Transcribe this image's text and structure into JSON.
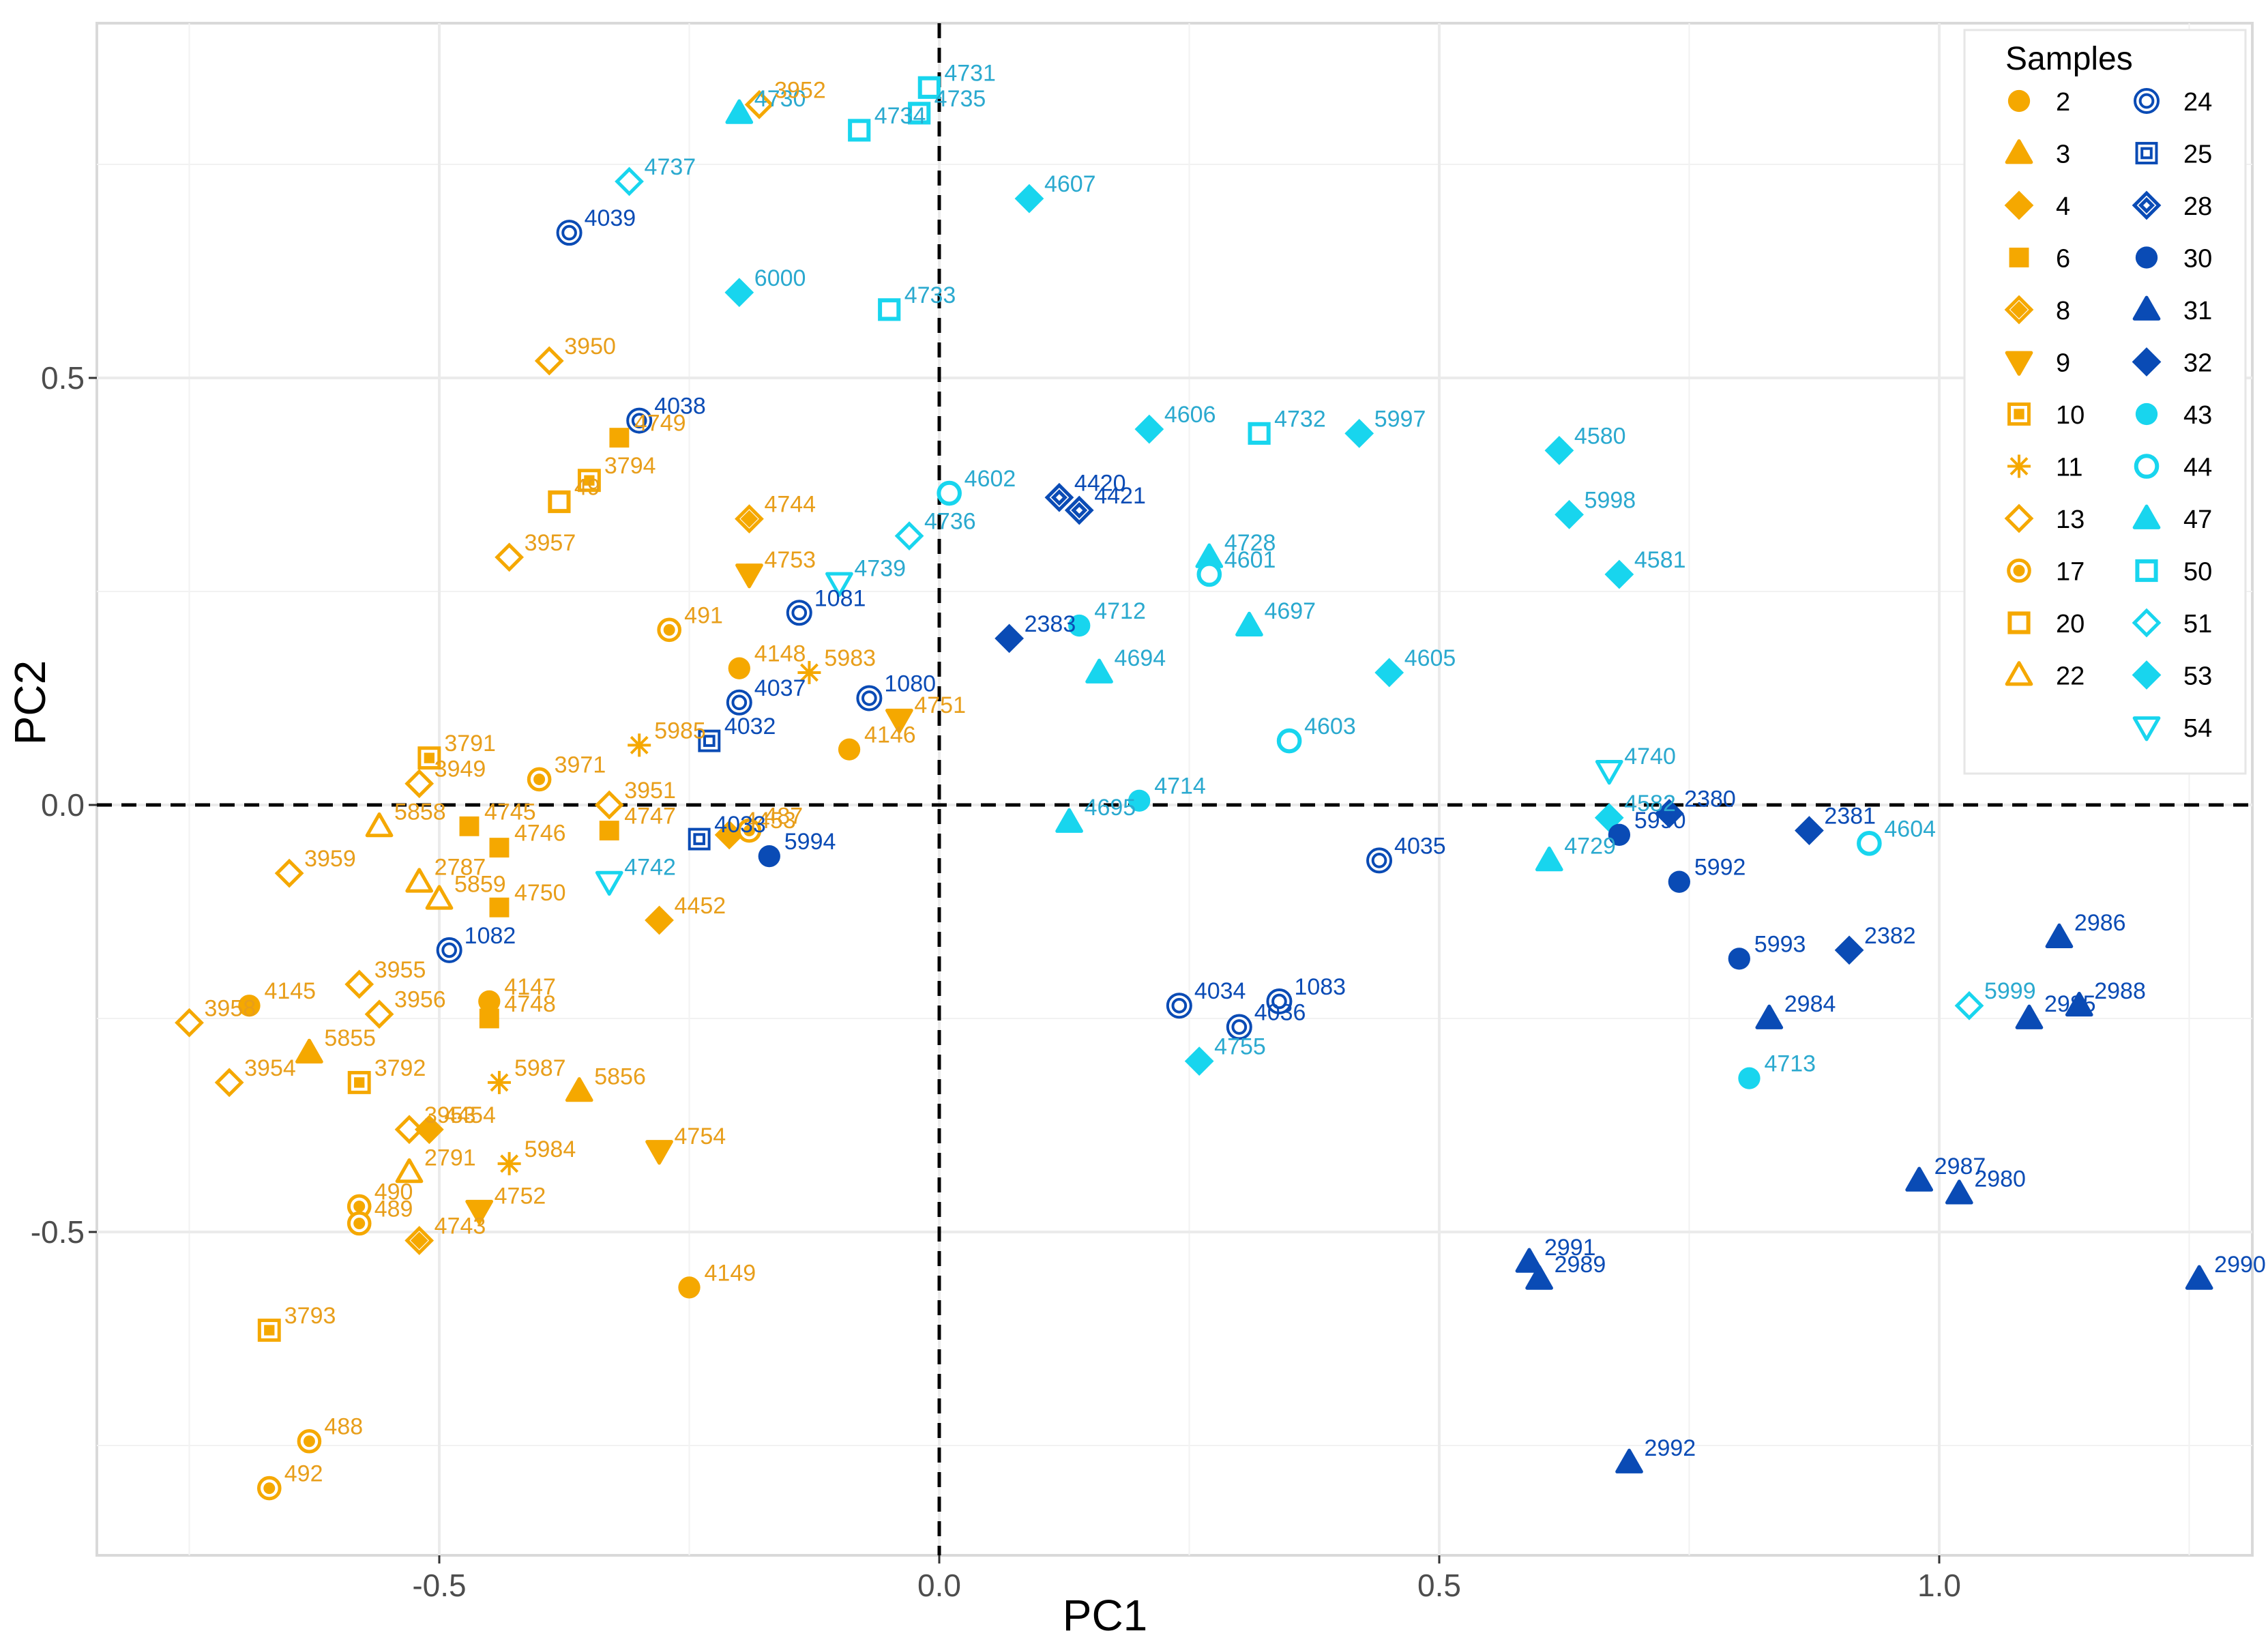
{
  "chart_data": {
    "type": "scatter",
    "xlabel": "PC1",
    "ylabel": "PC2",
    "xlim": [
      -0.84,
      1.32
    ],
    "ylim": [
      -0.88,
      0.92
    ],
    "xticks": [
      -0.5,
      0.0,
      0.5,
      1.0
    ],
    "xtick_labels": [
      "-0.5",
      "0.0",
      "0.5",
      "1.0"
    ],
    "yticks": [
      -0.5,
      0.0,
      0.5
    ],
    "ytick_labels": [
      "-0.5",
      "0.0",
      "0.5"
    ],
    "reference_lines": {
      "x": 0,
      "y": 0,
      "style": "dashed"
    },
    "grid": true,
    "legend": {
      "title": "Samples",
      "position": "top-right",
      "entries": [
        {
          "label": "2",
          "shape": "circle",
          "color": "#F5A800"
        },
        {
          "label": "3",
          "shape": "triangle",
          "color": "#F5A800"
        },
        {
          "label": "4",
          "shape": "diamond",
          "color": "#F5A800"
        },
        {
          "label": "6",
          "shape": "square",
          "color": "#F5A800"
        },
        {
          "label": "8",
          "shape": "diamond-plus",
          "color": "#F5A800"
        },
        {
          "label": "9",
          "shape": "triangle-down",
          "color": "#F5A800"
        },
        {
          "label": "10",
          "shape": "square-plus",
          "color": "#F5A800"
        },
        {
          "label": "11",
          "shape": "asterisk",
          "color": "#F5A800"
        },
        {
          "label": "13",
          "shape": "diamond-open",
          "color": "#F5A800"
        },
        {
          "label": "17",
          "shape": "circle-dot",
          "color": "#F5A800"
        },
        {
          "label": "20",
          "shape": "square-open",
          "color": "#F5A800"
        },
        {
          "label": "22",
          "shape": "triangle-open",
          "color": "#F5A800"
        },
        {
          "label": "24",
          "shape": "circle-double",
          "color": "#0A4BB5"
        },
        {
          "label": "25",
          "shape": "square-double",
          "color": "#0A4BB5"
        },
        {
          "label": "28",
          "shape": "diamond-double",
          "color": "#0A4BB5"
        },
        {
          "label": "30",
          "shape": "circle",
          "color": "#0A4BB5"
        },
        {
          "label": "31",
          "shape": "triangle",
          "color": "#0A4BB5"
        },
        {
          "label": "32",
          "shape": "diamond",
          "color": "#0A4BB5"
        },
        {
          "label": "43",
          "shape": "circle",
          "color": "#18D5EE"
        },
        {
          "label": "44",
          "shape": "circle-open",
          "color": "#18D5EE"
        },
        {
          "label": "47",
          "shape": "triangle",
          "color": "#18D5EE"
        },
        {
          "label": "50",
          "shape": "square-open",
          "color": "#18D5EE"
        },
        {
          "label": "51",
          "shape": "diamond-open",
          "color": "#18D5EE"
        },
        {
          "label": "53",
          "shape": "diamond",
          "color": "#18D5EE"
        },
        {
          "label": "54",
          "shape": "triangle-down-open",
          "color": "#18D5EE"
        }
      ]
    },
    "colors": {
      "orange": "#F5A800",
      "orange_text": "#E89E1A",
      "dark_blue": "#0A4BB5",
      "cyan": "#18D5EE",
      "cyan_text": "#2AA9CF",
      "grid": "#EBEBEB",
      "axis_text": "#4D4D4D"
    },
    "points": [
      {
        "id": "4730",
        "sample": "47",
        "x": -0.2,
        "y": 0.81
      },
      {
        "id": "3952",
        "sample": "13",
        "x": -0.18,
        "y": 0.82
      },
      {
        "id": "4731",
        "sample": "50",
        "x": -0.01,
        "y": 0.84
      },
      {
        "id": "4735",
        "sample": "50",
        "x": -0.02,
        "y": 0.81
      },
      {
        "id": "4734",
        "sample": "50",
        "x": -0.08,
        "y": 0.79
      },
      {
        "id": "4737",
        "sample": "51",
        "x": -0.31,
        "y": 0.73
      },
      {
        "id": "4607",
        "sample": "53",
        "x": 0.09,
        "y": 0.71
      },
      {
        "id": "4039",
        "sample": "24",
        "x": -0.37,
        "y": 0.67
      },
      {
        "id": "6000",
        "sample": "53",
        "x": -0.2,
        "y": 0.6
      },
      {
        "id": "4733",
        "sample": "50",
        "x": -0.05,
        "y": 0.58
      },
      {
        "id": "3950",
        "sample": "13",
        "x": -0.39,
        "y": 0.52
      },
      {
        "id": "4038",
        "sample": "24",
        "x": -0.3,
        "y": 0.45
      },
      {
        "id": "4749",
        "sample": "6",
        "x": -0.32,
        "y": 0.43
      },
      {
        "id": "3794",
        "sample": "10",
        "x": -0.35,
        "y": 0.38
      },
      {
        "id": "49",
        "sample": "20",
        "x": -0.38,
        "y": 0.355
      },
      {
        "id": "4744",
        "sample": "8",
        "x": -0.19,
        "y": 0.335
      },
      {
        "id": "3957",
        "sample": "13",
        "x": -0.43,
        "y": 0.29
      },
      {
        "id": "4753",
        "sample": "9",
        "x": -0.19,
        "y": 0.27
      },
      {
        "id": "4606",
        "sample": "53",
        "x": 0.21,
        "y": 0.44
      },
      {
        "id": "4732",
        "sample": "50",
        "x": 0.32,
        "y": 0.435
      },
      {
        "id": "5997",
        "sample": "53",
        "x": 0.42,
        "y": 0.435
      },
      {
        "id": "4580",
        "sample": "53",
        "x": 0.62,
        "y": 0.415
      },
      {
        "id": "5998",
        "sample": "53",
        "x": 0.63,
        "y": 0.34
      },
      {
        "id": "4602",
        "sample": "44",
        "x": 0.01,
        "y": 0.365
      },
      {
        "id": "4420",
        "sample": "28",
        "x": 0.12,
        "y": 0.36
      },
      {
        "id": "4421",
        "sample": "28",
        "x": 0.14,
        "y": 0.345
      },
      {
        "id": "4736",
        "sample": "51",
        "x": -0.03,
        "y": 0.315
      },
      {
        "id": "4728",
        "sample": "47",
        "x": 0.27,
        "y": 0.29
      },
      {
        "id": "4601",
        "sample": "44",
        "x": 0.27,
        "y": 0.27
      },
      {
        "id": "4581",
        "sample": "53",
        "x": 0.68,
        "y": 0.27
      },
      {
        "id": "4739",
        "sample": "54",
        "x": -0.1,
        "y": 0.26
      },
      {
        "id": "1081",
        "sample": "24",
        "x": -0.14,
        "y": 0.225
      },
      {
        "id": "491",
        "sample": "17",
        "x": -0.27,
        "y": 0.205
      },
      {
        "id": "4712",
        "sample": "43",
        "x": 0.14,
        "y": 0.21
      },
      {
        "id": "4697",
        "sample": "47",
        "x": 0.31,
        "y": 0.21
      },
      {
        "id": "2383",
        "sample": "32",
        "x": 0.07,
        "y": 0.195
      },
      {
        "id": "4148",
        "sample": "2",
        "x": -0.2,
        "y": 0.16
      },
      {
        "id": "5983",
        "sample": "11",
        "x": -0.13,
        "y": 0.155
      },
      {
        "id": "4694",
        "sample": "47",
        "x": 0.16,
        "y": 0.155
      },
      {
        "id": "4605",
        "sample": "53",
        "x": 0.45,
        "y": 0.155
      },
      {
        "id": "4037",
        "sample": "24",
        "x": -0.2,
        "y": 0.12
      },
      {
        "id": "1080",
        "sample": "24",
        "x": -0.07,
        "y": 0.125
      },
      {
        "id": "4751",
        "sample": "9",
        "x": -0.04,
        "y": 0.1
      },
      {
        "id": "5985",
        "sample": "11",
        "x": -0.3,
        "y": 0.07
      },
      {
        "id": "4032",
        "sample": "25",
        "x": -0.23,
        "y": 0.075
      },
      {
        "id": "4603",
        "sample": "44",
        "x": 0.35,
        "y": 0.075
      },
      {
        "id": "4146",
        "sample": "2",
        "x": -0.09,
        "y": 0.065
      },
      {
        "id": "4740",
        "sample": "54",
        "x": 0.67,
        "y": 0.04
      },
      {
        "id": "3791",
        "sample": "10",
        "x": -0.51,
        "y": 0.055
      },
      {
        "id": "3971",
        "sample": "17",
        "x": -0.4,
        "y": 0.03
      },
      {
        "id": "3949",
        "sample": "13",
        "x": -0.52,
        "y": 0.025
      },
      {
        "id": "3951",
        "sample": "13",
        "x": -0.33,
        "y": 0.0
      },
      {
        "id": "4714",
        "sample": "43",
        "x": 0.2,
        "y": 0.005
      },
      {
        "id": "4582",
        "sample": "53",
        "x": 0.67,
        "y": -0.015
      },
      {
        "id": "2380",
        "sample": "32",
        "x": 0.73,
        "y": -0.01
      },
      {
        "id": "4695",
        "sample": "47",
        "x": 0.13,
        "y": -0.02
      },
      {
        "id": "2381",
        "sample": "32",
        "x": 0.87,
        "y": -0.03
      },
      {
        "id": "4604",
        "sample": "44",
        "x": 0.93,
        "y": -0.045
      },
      {
        "id": "5990",
        "sample": "30",
        "x": 0.68,
        "y": -0.035
      },
      {
        "id": "4745",
        "sample": "6",
        "x": -0.47,
        "y": -0.025
      },
      {
        "id": "4453",
        "sample": "4",
        "x": -0.21,
        "y": -0.035
      },
      {
        "id": "487",
        "sample": "17",
        "x": -0.19,
        "y": -0.03
      },
      {
        "id": "4747",
        "sample": "6",
        "x": -0.33,
        "y": -0.03
      },
      {
        "id": "5858",
        "sample": "22",
        "x": -0.56,
        "y": -0.025
      },
      {
        "id": "4746",
        "sample": "6",
        "x": -0.44,
        "y": -0.05
      },
      {
        "id": "4033",
        "sample": "25",
        "x": -0.24,
        "y": -0.04
      },
      {
        "id": "5994",
        "sample": "30",
        "x": -0.17,
        "y": -0.06
      },
      {
        "id": "3959",
        "sample": "13",
        "x": -0.65,
        "y": -0.08
      },
      {
        "id": "2787",
        "sample": "22",
        "x": -0.52,
        "y": -0.09
      },
      {
        "id": "4742",
        "sample": "54",
        "x": -0.33,
        "y": -0.09
      },
      {
        "id": "4035",
        "sample": "24",
        "x": 0.44,
        "y": -0.065
      },
      {
        "id": "4729",
        "sample": "47",
        "x": 0.61,
        "y": -0.065
      },
      {
        "id": "5992",
        "sample": "30",
        "x": 0.74,
        "y": -0.09
      },
      {
        "id": "5859",
        "sample": "22",
        "x": -0.5,
        "y": -0.11
      },
      {
        "id": "4750",
        "sample": "6",
        "x": -0.44,
        "y": -0.12
      },
      {
        "id": "4452",
        "sample": "4",
        "x": -0.28,
        "y": -0.135
      },
      {
        "id": "1082",
        "sample": "24",
        "x": -0.49,
        "y": -0.17
      },
      {
        "id": "5993",
        "sample": "30",
        "x": 0.8,
        "y": -0.18
      },
      {
        "id": "2382",
        "sample": "32",
        "x": 0.91,
        "y": -0.17
      },
      {
        "id": "2986",
        "sample": "31",
        "x": 1.12,
        "y": -0.155
      },
      {
        "id": "3955",
        "sample": "13",
        "x": -0.58,
        "y": -0.21
      },
      {
        "id": "4147",
        "sample": "2",
        "x": -0.45,
        "y": -0.23
      },
      {
        "id": "4145",
        "sample": "2",
        "x": -0.69,
        "y": -0.235
      },
      {
        "id": "3956",
        "sample": "13",
        "x": -0.56,
        "y": -0.245
      },
      {
        "id": "4748",
        "sample": "6",
        "x": -0.45,
        "y": -0.25
      },
      {
        "id": "3958",
        "sample": "13",
        "x": -0.75,
        "y": -0.255
      },
      {
        "id": "4034",
        "sample": "24",
        "x": 0.24,
        "y": -0.235
      },
      {
        "id": "1083",
        "sample": "24",
        "x": 0.34,
        "y": -0.23
      },
      {
        "id": "4036",
        "sample": "24",
        "x": 0.3,
        "y": -0.26
      },
      {
        "id": "2984",
        "sample": "31",
        "x": 0.83,
        "y": -0.25
      },
      {
        "id": "5999",
        "sample": "51",
        "x": 1.03,
        "y": -0.235
      },
      {
        "id": "2988",
        "sample": "31",
        "x": 1.14,
        "y": -0.235
      },
      {
        "id": "2985",
        "sample": "31",
        "x": 1.09,
        "y": -0.25
      },
      {
        "id": "5855",
        "sample": "3",
        "x": -0.63,
        "y": -0.29
      },
      {
        "id": "4755",
        "sample": "53",
        "x": 0.26,
        "y": -0.3
      },
      {
        "id": "4713",
        "sample": "43",
        "x": 0.81,
        "y": -0.32
      },
      {
        "id": "3954",
        "sample": "13",
        "x": -0.71,
        "y": -0.325
      },
      {
        "id": "3792",
        "sample": "10",
        "x": -0.58,
        "y": -0.325
      },
      {
        "id": "5987",
        "sample": "11",
        "x": -0.44,
        "y": -0.325
      },
      {
        "id": "5856",
        "sample": "3",
        "x": -0.36,
        "y": -0.335
      },
      {
        "id": "3953",
        "sample": "13",
        "x": -0.53,
        "y": -0.38
      },
      {
        "id": "4454",
        "sample": "4",
        "x": -0.51,
        "y": -0.38
      },
      {
        "id": "4754",
        "sample": "9",
        "x": -0.28,
        "y": -0.405
      },
      {
        "id": "2791",
        "sample": "22",
        "x": -0.53,
        "y": -0.43
      },
      {
        "id": "5984",
        "sample": "11",
        "x": -0.43,
        "y": -0.42
      },
      {
        "id": "2987",
        "sample": "31",
        "x": 0.98,
        "y": -0.44
      },
      {
        "id": "2980",
        "sample": "31",
        "x": 1.02,
        "y": -0.455
      },
      {
        "id": "490",
        "sample": "17",
        "x": -0.58,
        "y": -0.47
      },
      {
        "id": "4752",
        "sample": "9",
        "x": -0.46,
        "y": -0.475
      },
      {
        "id": "489",
        "sample": "17",
        "x": -0.58,
        "y": -0.49
      },
      {
        "id": "4743",
        "sample": "8",
        "x": -0.52,
        "y": -0.51
      },
      {
        "id": "2991",
        "sample": "31",
        "x": 0.59,
        "y": -0.535
      },
      {
        "id": "2989",
        "sample": "31",
        "x": 0.6,
        "y": -0.555
      },
      {
        "id": "4149",
        "sample": "2",
        "x": -0.25,
        "y": -0.565
      },
      {
        "id": "2990",
        "sample": "31",
        "x": 1.26,
        "y": -0.555
      },
      {
        "id": "3793",
        "sample": "10",
        "x": -0.67,
        "y": -0.615
      },
      {
        "id": "488",
        "sample": "17",
        "x": -0.63,
        "y": -0.745
      },
      {
        "id": "2992",
        "sample": "31",
        "x": 0.69,
        "y": -0.77
      },
      {
        "id": "492",
        "sample": "17",
        "x": -0.67,
        "y": -0.8
      }
    ]
  }
}
